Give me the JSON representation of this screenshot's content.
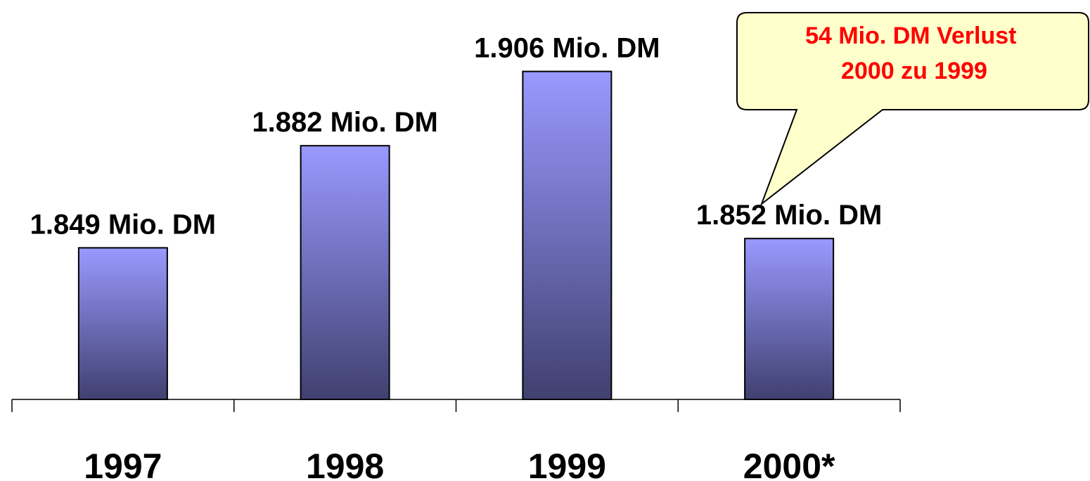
{
  "chart_data": {
    "type": "bar",
    "categories": [
      "1997",
      "1998",
      "1999",
      "2000*"
    ],
    "values": [
      1849,
      1882,
      1906,
      1852
    ],
    "data_labels": [
      "1.849 Mio. DM",
      "1.882 Mio. DM",
      "1.906 Mio. DM",
      "1.852 Mio. DM"
    ],
    "title": "",
    "xlabel": "",
    "ylabel": "",
    "ylim": [
      1800,
      1920
    ],
    "grid": false,
    "legend": "none",
    "annotation": {
      "lines": [
        "54 Mio. DM Verlust",
        "2000 zu 1999"
      ],
      "color": "#FF0000",
      "fill": "#FFFFCC",
      "points_to": "2000*"
    },
    "colors": {
      "bar_top": "#9999FF",
      "bar_bottom": "#404070",
      "axis": "#000000"
    }
  }
}
